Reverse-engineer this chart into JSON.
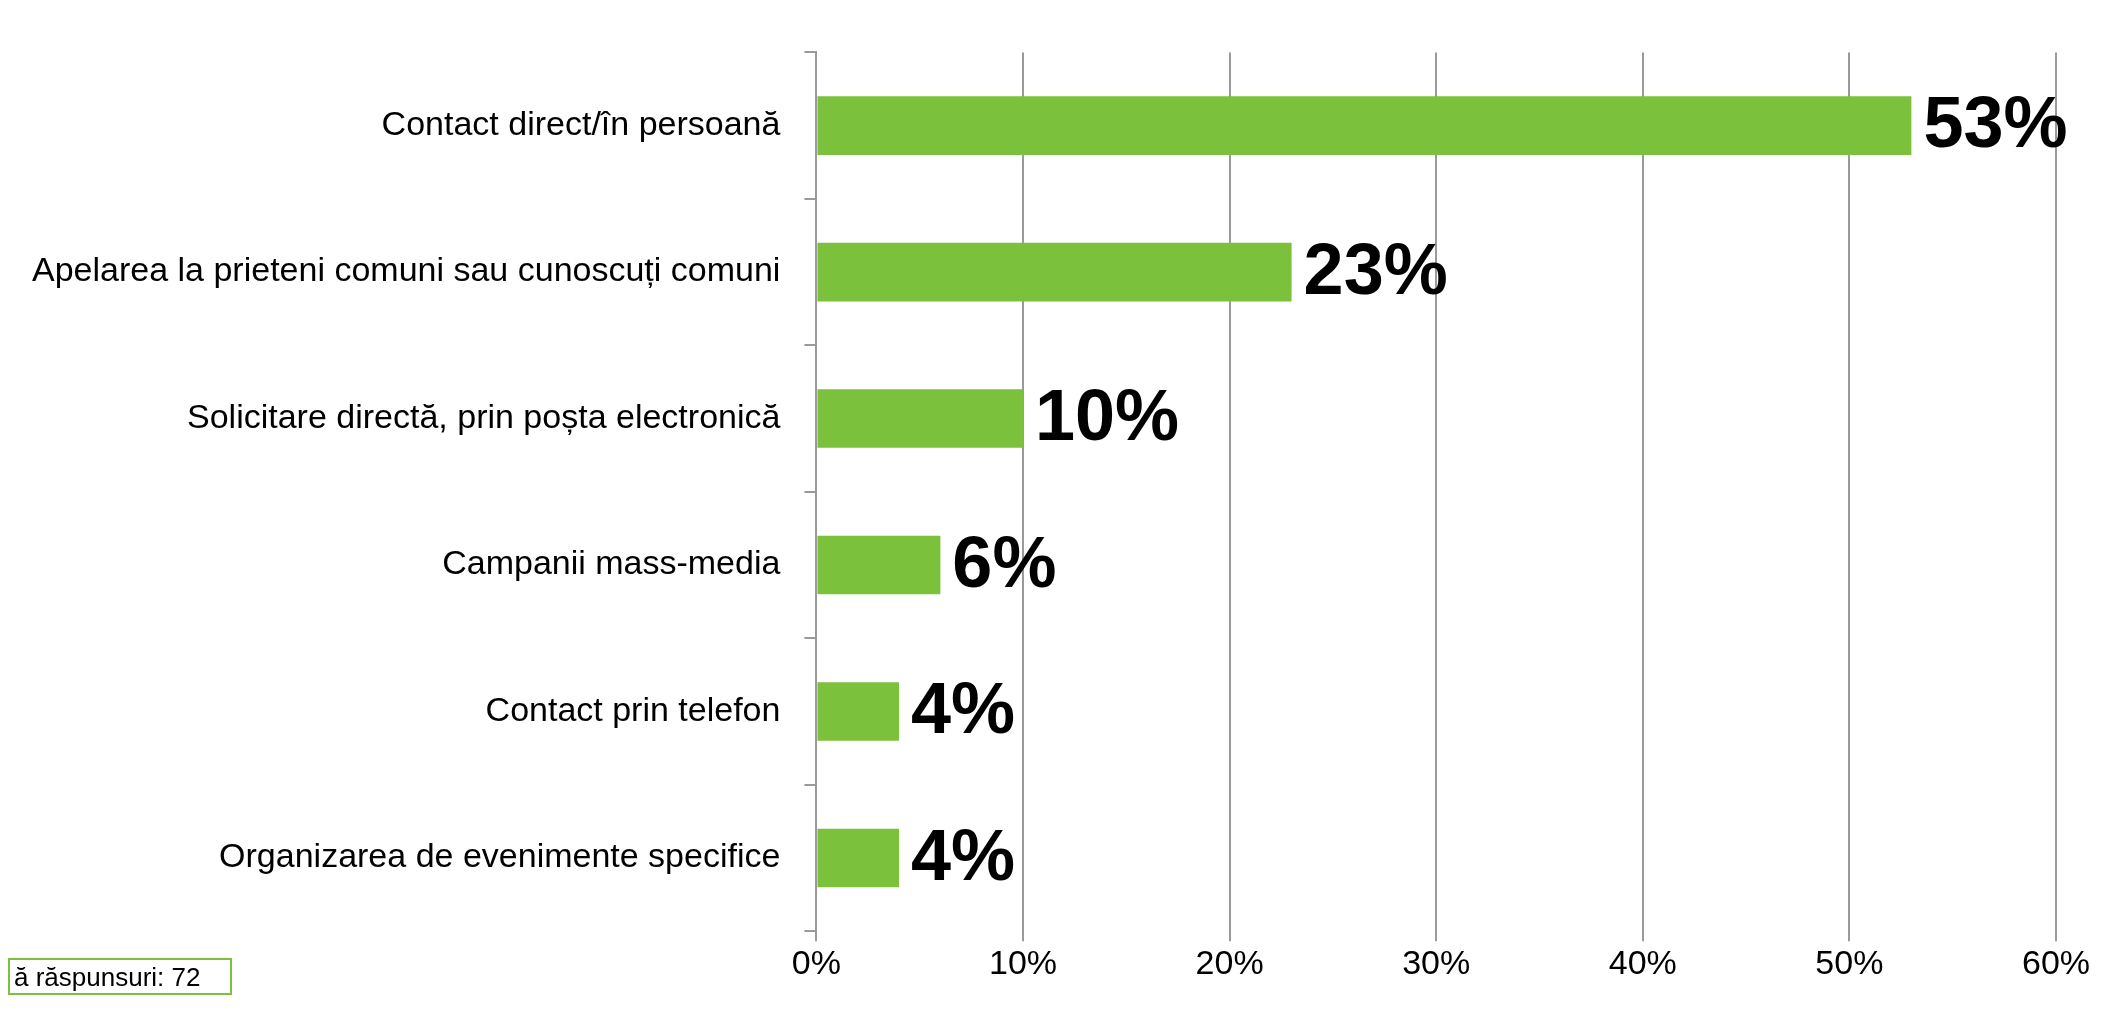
{
  "chart_data": {
    "type": "bar",
    "orientation": "horizontal",
    "categories": [
      "Contact direct/în persoană",
      "Apelarea la prieteni comuni sau cunoscuți comuni",
      "Solicitare directă, prin poșta electronică",
      "Campanii mass-media",
      "Contact prin telefon",
      "Organizarea de evenimente specifice"
    ],
    "values": [
      53,
      23,
      10,
      6,
      4,
      4
    ],
    "color": "#7bc13c",
    "value_labels": [
      "53%",
      "23%",
      "10%",
      "6%",
      "4%",
      "4%"
    ],
    "xlim": [
      0,
      60
    ],
    "xticks": [
      {
        "value": 0,
        "label": "0%"
      },
      {
        "value": 10,
        "label": "10%"
      },
      {
        "value": 20,
        "label": "20%"
      },
      {
        "value": 30,
        "label": "30%"
      },
      {
        "value": 40,
        "label": "40%"
      },
      {
        "value": 50,
        "label": "50%"
      },
      {
        "value": 60,
        "label": "60%"
      }
    ],
    "grid": "x",
    "legend": false,
    "annotations": [
      "ă răspunsuri: 72"
    ]
  }
}
